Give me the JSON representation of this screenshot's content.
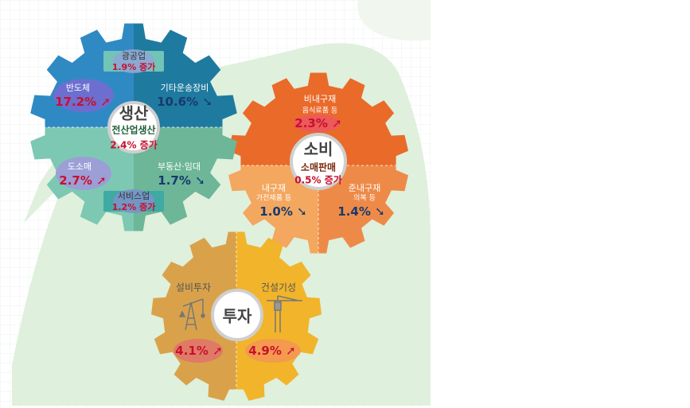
{
  "colors": {
    "production_tl": "#2f8ac4",
    "production_tr": "#1f7aa0",
    "production_bl": "#7dc8b2",
    "production_br": "#6db698",
    "consumption_top": "#ea6a2a",
    "consumption_bl": "#f3a75f",
    "consumption_br": "#ee8a48",
    "investment_left": "#d9a24a",
    "investment_right": "#f2b42a",
    "increase": "#c8102e",
    "decrease": "#173a6e"
  },
  "production": {
    "title": "생산",
    "subtitle": "전산업생산",
    "total": "2.4% 증가",
    "mining": {
      "label": "광공업",
      "value": "1.9% 증가"
    },
    "semiconductor": {
      "label": "반도체",
      "value": "17.2%",
      "trend": "up"
    },
    "other_transport": {
      "label": "기타운송장비",
      "value": "10.6%",
      "trend": "down"
    },
    "wholesale_retail": {
      "label": "도소매",
      "value": "2.7%",
      "trend": "up"
    },
    "real_estate": {
      "label": "부동산·임대",
      "value": "1.7%",
      "trend": "down"
    },
    "services": {
      "label": "서비스업",
      "value": "1.2% 증가"
    }
  },
  "consumption": {
    "title": "소비",
    "subtitle": "소매판매",
    "total": "0.5% 증가",
    "nondurable": {
      "label": "비내구재",
      "sub": "음식료품 등",
      "value": "2.3%",
      "trend": "up"
    },
    "durable": {
      "label": "내구재",
      "sub": "가전제품 등",
      "value": "1.0%",
      "trend": "down"
    },
    "semidurable": {
      "label": "준내구재",
      "sub": "의복 등",
      "value": "1.4%",
      "trend": "down"
    }
  },
  "investment": {
    "title": "투자",
    "facility": {
      "label": "설비투자",
      "value": "4.1%",
      "trend": "up"
    },
    "construction": {
      "label": "건설기성",
      "value": "4.9%",
      "trend": "up"
    }
  }
}
